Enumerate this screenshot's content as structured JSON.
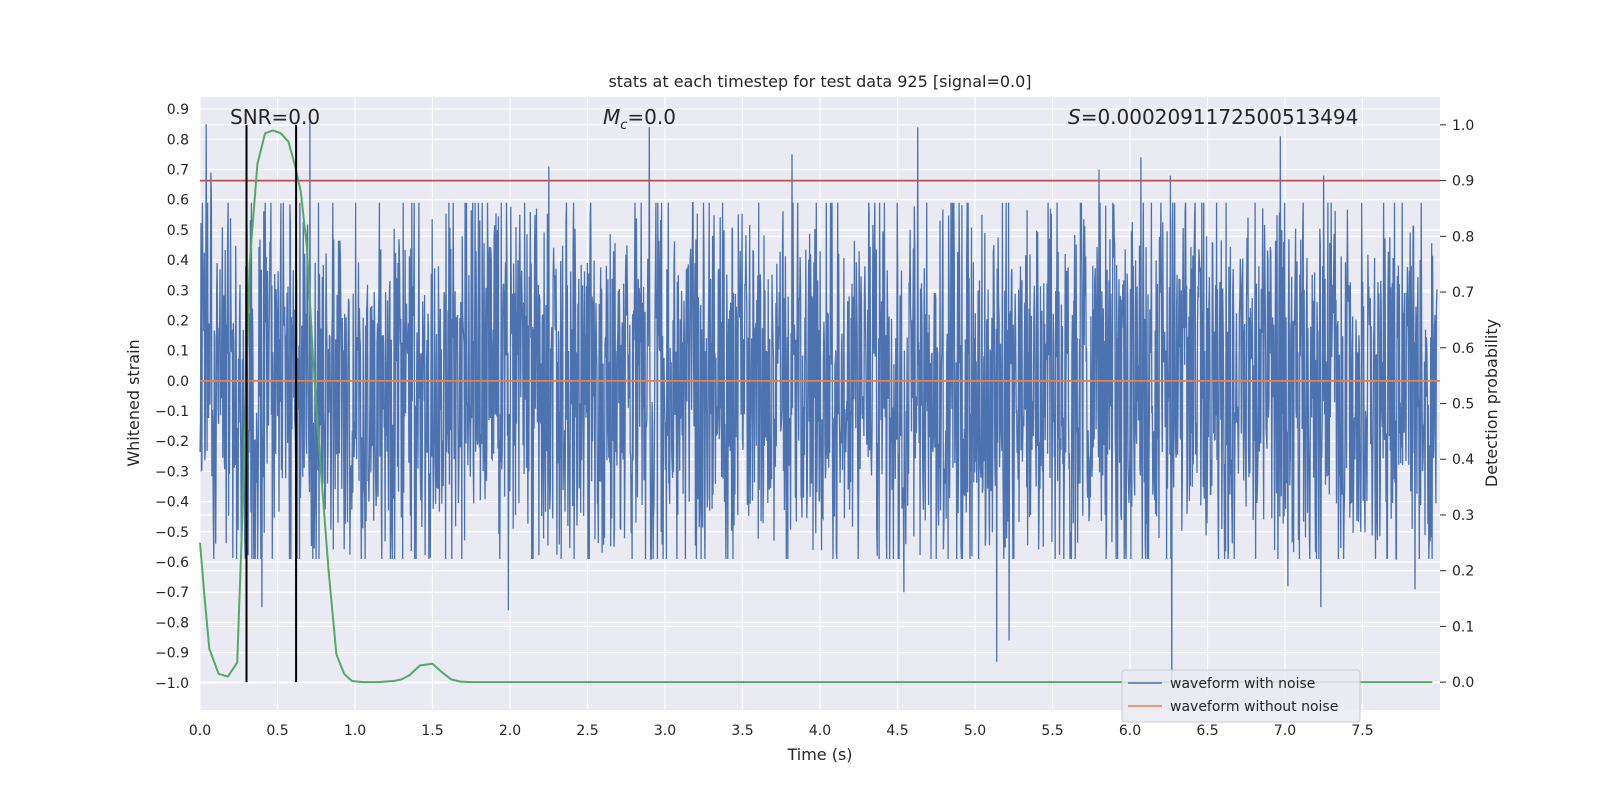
{
  "chart_data": {
    "type": "line",
    "title": "stats at each timestep for test data 925 [signal=0.0]",
    "xlabel": "Time (s)",
    "ylabel": "Whitened strain",
    "y2label": "Detection probability",
    "xlim": [
      0.0,
      8.0
    ],
    "ylim": [
      -1.09,
      0.94
    ],
    "y2lim": [
      -0.05,
      1.05
    ],
    "x_ticks": [
      "0.0",
      "0.5",
      "1.0",
      "1.5",
      "2.0",
      "2.5",
      "3.0",
      "3.5",
      "4.0",
      "4.5",
      "5.0",
      "5.5",
      "6.0",
      "6.5",
      "7.0",
      "7.5"
    ],
    "y_ticks": [
      "0.9",
      "0.8",
      "0.7",
      "0.6",
      "0.5",
      "0.4",
      "0.3",
      "0.2",
      "0.1",
      "0.0",
      "−0.1",
      "−0.2",
      "−0.3",
      "−0.4",
      "−0.5",
      "−0.6",
      "−0.7",
      "−0.8",
      "−0.9",
      "−1.0"
    ],
    "y2_ticks": [
      "1.0",
      "0.9",
      "0.8",
      "0.7",
      "0.6",
      "0.5",
      "0.4",
      "0.3",
      "0.2",
      "0.1",
      "0.0"
    ],
    "annotations": {
      "snr": "SNR=0.0",
      "mc_symbol": "M",
      "mc_sub": "c",
      "mc_value": "=0.0",
      "s_symbol": "S",
      "s_value": "=0.0002091172500513494"
    },
    "legend": {
      "placement": "lower-right",
      "entries": [
        "waveform with noise",
        "waveform without noise"
      ]
    },
    "series": [
      {
        "name": "waveform with noise",
        "color": "#4c72b0",
        "description": "dense whitened-strain noise, roughly within -0.55..0.55 with spikes up to about 0.85 and down to about -1.0",
        "peaks_x": [
          0.04,
          0.07,
          0.71,
          2.25,
          2.9,
          3.82,
          4.63,
          5.8,
          6.07,
          6.26,
          6.97,
          7.25
        ],
        "peaks_y": [
          0.85,
          0.69,
          0.86,
          0.71,
          0.84,
          0.75,
          0.84,
          0.7,
          0.74,
          0.68,
          0.81,
          0.68
        ],
        "troughs_x": [
          0.4,
          0.62,
          1.99,
          4.54,
          5.14,
          5.22,
          6.27,
          7.02,
          7.23,
          7.84
        ],
        "troughs_y": [
          -0.75,
          -0.8,
          -0.76,
          -0.7,
          -0.93,
          -0.86,
          -1.0,
          -0.68,
          -0.75,
          -0.69
        ]
      },
      {
        "name": "waveform without noise",
        "color": "#dd8452",
        "y_constant": 0.0
      },
      {
        "axis": "right",
        "color": "#55a868",
        "x": [
          0.0,
          0.03,
          0.06,
          0.12,
          0.18,
          0.24,
          0.28,
          0.32,
          0.37,
          0.42,
          0.47,
          0.52,
          0.57,
          0.61,
          0.65,
          0.69,
          0.73,
          0.78,
          0.83,
          0.88,
          0.93,
          0.98,
          1.05,
          1.15,
          1.25,
          1.3,
          1.35,
          1.42,
          1.5,
          1.56,
          1.62,
          1.68,
          1.75,
          1.85,
          2.0,
          3.0,
          4.0,
          5.0,
          6.0,
          7.0,
          7.95
        ],
        "y": [
          0.25,
          0.15,
          0.06,
          0.015,
          0.01,
          0.035,
          0.35,
          0.75,
          0.93,
          0.985,
          0.99,
          0.985,
          0.97,
          0.93,
          0.88,
          0.78,
          0.58,
          0.38,
          0.2,
          0.05,
          0.015,
          0.002,
          0.0,
          0.0,
          0.002,
          0.005,
          0.012,
          0.03,
          0.033,
          0.018,
          0.005,
          0.001,
          0.0,
          0.0,
          0.0,
          0.0,
          0.0,
          0.0,
          0.0,
          0.0,
          0.0
        ]
      }
    ],
    "threshold": {
      "axis": "right",
      "y": 0.9,
      "color": "#c44e52"
    },
    "vlines": {
      "x": [
        0.3,
        0.62
      ],
      "y_range": [
        0.0,
        1.0
      ],
      "axis": "right",
      "color": "#000000"
    },
    "grid": true,
    "background": "#eaeaf2"
  }
}
